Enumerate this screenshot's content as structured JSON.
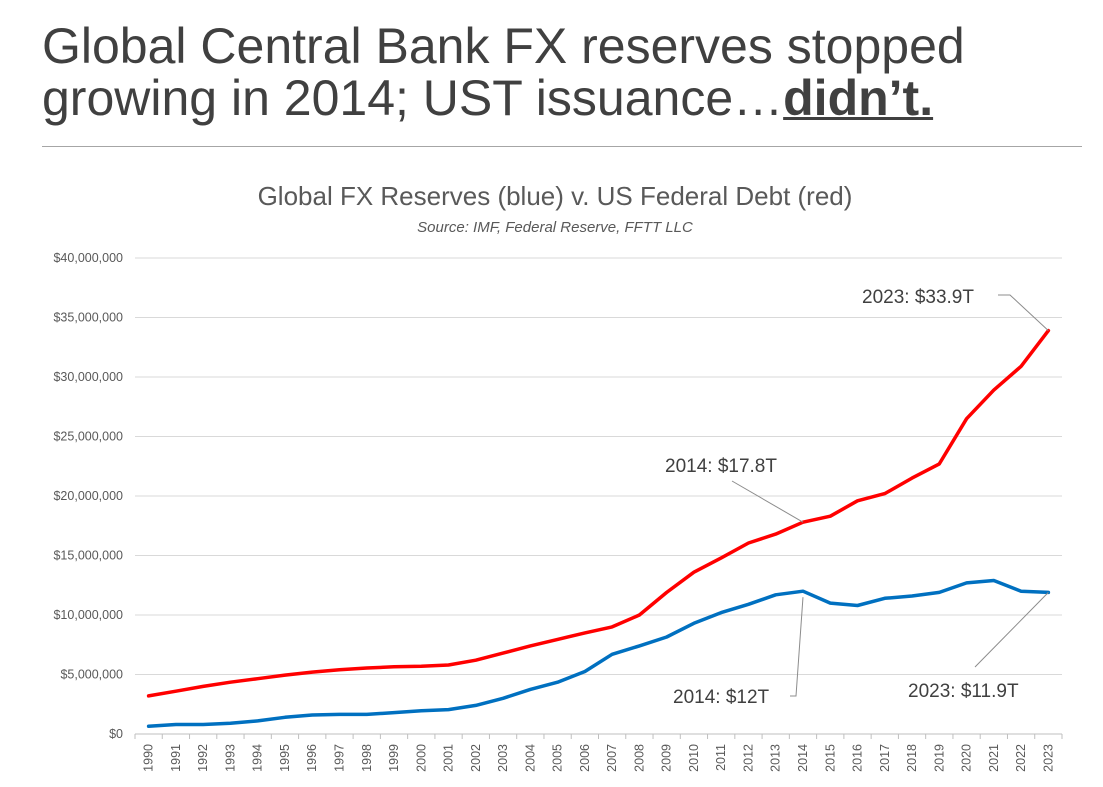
{
  "headline": {
    "line1": "Global Central Bank FX reserves stopped",
    "line2_plain": "growing in 2014; UST issuance…",
    "line2_emph": "didn’t."
  },
  "chart_data": {
    "type": "line",
    "title": "Global FX Reserves (blue) v. US Federal Debt (red)",
    "subtitle": "Source: IMF, Federal Reserve, FFTT LLC",
    "x": [
      "1990",
      "1991",
      "1992",
      "1993",
      "1994",
      "1995",
      "1996",
      "1997",
      "1998",
      "1999",
      "2000",
      "2001",
      "2002",
      "2003",
      "2004",
      "2005",
      "2006",
      "2007",
      "2008",
      "2009",
      "2010",
      "2011",
      "2012",
      "2013",
      "2014",
      "2015",
      "2016",
      "2017",
      "2018",
      "2019",
      "2020",
      "2021",
      "2022",
      "2023"
    ],
    "ylim": [
      0,
      40000000
    ],
    "y_ticks": [
      0,
      5000000,
      10000000,
      15000000,
      20000000,
      25000000,
      30000000,
      35000000,
      40000000
    ],
    "y_tick_labels": [
      "$0",
      "$5,000,000",
      "$10,000,000",
      "$15,000,000",
      "$20,000,000",
      "$25,000,000",
      "$30,000,000",
      "$35,000,000",
      "$40,000,000"
    ],
    "grid": true,
    "series": [
      {
        "color": "#ff0000",
        "values": [
          3200000,
          3600000,
          4000000,
          4350000,
          4650000,
          4950000,
          5200000,
          5400000,
          5550000,
          5650000,
          5700000,
          5800000,
          6200000,
          6800000,
          7400000,
          7950000,
          8500000,
          9000000,
          10000000,
          11900000,
          13600000,
          14800000,
          16050000,
          16800000,
          17800000,
          18300000,
          19600000,
          20200000,
          21500000,
          22700000,
          26500000,
          28900000,
          30900000,
          33900000
        ]
      },
      {
        "color": "#0070c0",
        "values": [
          650000,
          800000,
          800000,
          900000,
          1100000,
          1400000,
          1600000,
          1650000,
          1650000,
          1800000,
          1950000,
          2050000,
          2400000,
          3000000,
          3750000,
          4350000,
          5250000,
          6700000,
          7400000,
          8150000,
          9300000,
          10200000,
          10900000,
          11700000,
          12000000,
          11000000,
          10800000,
          11400000,
          11600000,
          11900000,
          12700000,
          12900000,
          12000000,
          11900000
        ]
      }
    ],
    "annotations": [
      {
        "text": "2023: $33.9T",
        "series": 0,
        "x": "2023"
      },
      {
        "text": "2014: $17.8T",
        "series": 0,
        "x": "2014"
      },
      {
        "text": "2014: $12T",
        "series": 1,
        "x": "2014"
      },
      {
        "text": "2023: $11.9T",
        "series": 1,
        "x": "2023"
      }
    ]
  }
}
